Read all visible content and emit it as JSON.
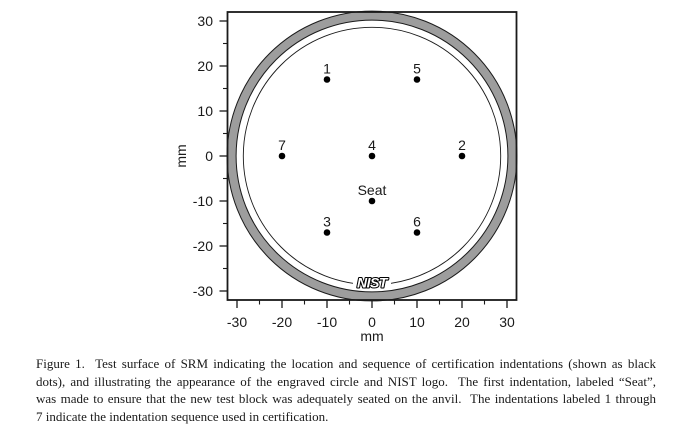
{
  "figure": {
    "caption_lines": [
      "Figure 1.  Test surface of SRM indicating the location and sequence of certification indentations (shown as black",
      "dots), and illustrating the appearance of the engraved circle and NIST logo.  The first indentation, labeled “Seat”,",
      "was made to ensure that the new test block was adequately seated on the anvil.  The indentations labeled 1 through",
      "7 indicate the indentation sequence used in certification."
    ]
  },
  "chart_data": {
    "type": "scatter",
    "title": "",
    "xlabel": "mm",
    "ylabel": "mm",
    "xlim": [
      -32,
      32
    ],
    "ylim": [
      -32,
      32
    ],
    "major_ticks": [
      -30,
      -20,
      -10,
      0,
      10,
      20,
      30
    ],
    "minor_ticks": [
      -25,
      -15,
      -5,
      5,
      15,
      25
    ],
    "grid": false,
    "points": [
      {
        "label": "1",
        "x": -10,
        "y": 17
      },
      {
        "label": "5",
        "x": 10,
        "y": 17
      },
      {
        "label": "7",
        "x": -20,
        "y": 0
      },
      {
        "label": "4",
        "x": 0,
        "y": 0
      },
      {
        "label": "2",
        "x": 20,
        "y": 0
      },
      {
        "label": "Seat",
        "x": 0,
        "y": -10
      },
      {
        "label": "3",
        "x": -10,
        "y": -17
      },
      {
        "label": "6",
        "x": 10,
        "y": -17
      }
    ],
    "engraved_ring": {
      "r_outer_mm": 32.2,
      "r_inner_mm": 30.2,
      "fill": "#9d9d9d",
      "edge": "#1a1a1a"
    },
    "inner_circle": {
      "r_mm": 28.6,
      "color": "#1a1a1a"
    },
    "logo": {
      "text": "NIST",
      "x_mm": 0,
      "y_mm": -28.2
    }
  }
}
